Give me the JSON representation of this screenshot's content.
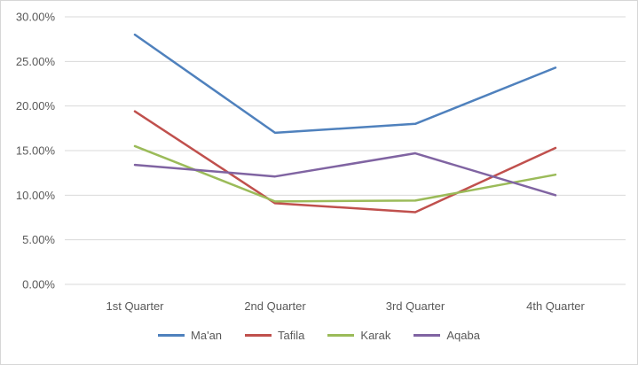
{
  "chart_data": {
    "type": "line",
    "categories": [
      "1st Quarter",
      "2nd Quarter",
      "3rd Quarter",
      "4th Quarter"
    ],
    "series": [
      {
        "name": "Ma'an",
        "color": "#4F81BD",
        "values": [
          28.0,
          17.0,
          18.0,
          24.3
        ]
      },
      {
        "name": "Tafila",
        "color": "#C0504D",
        "values": [
          19.4,
          9.1,
          8.1,
          15.3
        ]
      },
      {
        "name": "Karak",
        "color": "#9BBB59",
        "values": [
          15.5,
          9.3,
          9.4,
          12.3
        ]
      },
      {
        "name": "Aqaba",
        "color": "#8064A2",
        "values": [
          13.4,
          12.1,
          14.7,
          10.0
        ]
      }
    ],
    "y_ticks": [
      "0.00%",
      "5.00%",
      "10.00%",
      "15.00%",
      "20.00%",
      "25.00%",
      "30.00%"
    ],
    "ylim": [
      0,
      30
    ],
    "grid": true,
    "legend_position": "bottom",
    "legend_entries": [
      "Ma'an",
      "Tafila",
      "Karak",
      "Aqaba"
    ]
  },
  "style": {
    "axis_text_color": "#595959",
    "gridline_color": "#D9D9D9",
    "background": "#FFFFFF",
    "border_color": "#D7D7D7"
  }
}
